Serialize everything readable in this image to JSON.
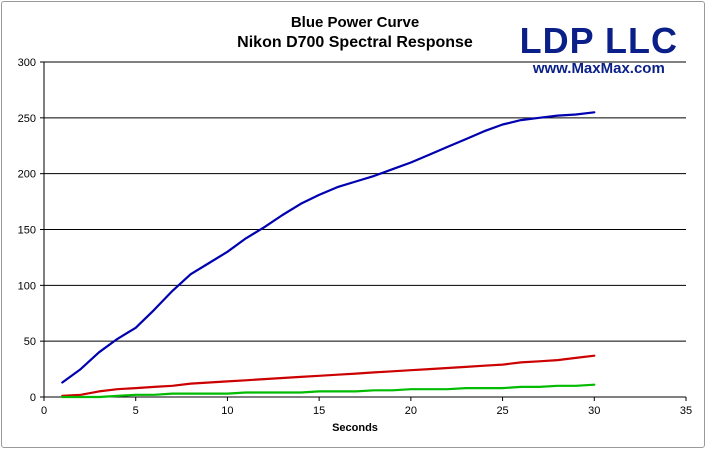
{
  "chart_data": {
    "type": "line",
    "title": "Blue Power Curve",
    "subtitle": "Nikon D700 Spectral Response",
    "xlabel": "Seconds",
    "ylabel": "",
    "xlim": [
      0,
      35
    ],
    "ylim": [
      0,
      300
    ],
    "x_ticks": [
      0,
      5,
      10,
      15,
      20,
      25,
      30,
      35
    ],
    "y_ticks": [
      0,
      50,
      100,
      150,
      200,
      250,
      300
    ],
    "grid": "horizontal",
    "legend": "none",
    "x": [
      1,
      2,
      3,
      4,
      5,
      6,
      7,
      8,
      9,
      10,
      11,
      12,
      13,
      14,
      15,
      16,
      17,
      18,
      19,
      20,
      21,
      22,
      23,
      24,
      25,
      26,
      27,
      28,
      29,
      30
    ],
    "series": [
      {
        "color": "#0000b0",
        "values": [
          13,
          25,
          40,
          52,
          62,
          78,
          95,
          110,
          120,
          130,
          142,
          152,
          163,
          173,
          181,
          188,
          193,
          198,
          204,
          210,
          217,
          224,
          231,
          238,
          244,
          248,
          250,
          252,
          253,
          255
        ]
      },
      {
        "color": "#cc0000",
        "values": [
          1,
          2,
          5,
          7,
          8,
          9,
          10,
          12,
          13,
          14,
          15,
          16,
          17,
          18,
          19,
          20,
          21,
          22,
          23,
          24,
          25,
          26,
          27,
          28,
          29,
          31,
          32,
          33,
          35,
          37
        ]
      },
      {
        "color": "#00bb00",
        "values": [
          0,
          0,
          0,
          1,
          2,
          2,
          3,
          3,
          3,
          3,
          4,
          4,
          4,
          4,
          5,
          5,
          5,
          6,
          6,
          7,
          7,
          7,
          8,
          8,
          8,
          9,
          9,
          10,
          10,
          11
        ]
      }
    ]
  },
  "brand": {
    "name": "LDP LLC",
    "url": "www.MaxMax.com"
  }
}
